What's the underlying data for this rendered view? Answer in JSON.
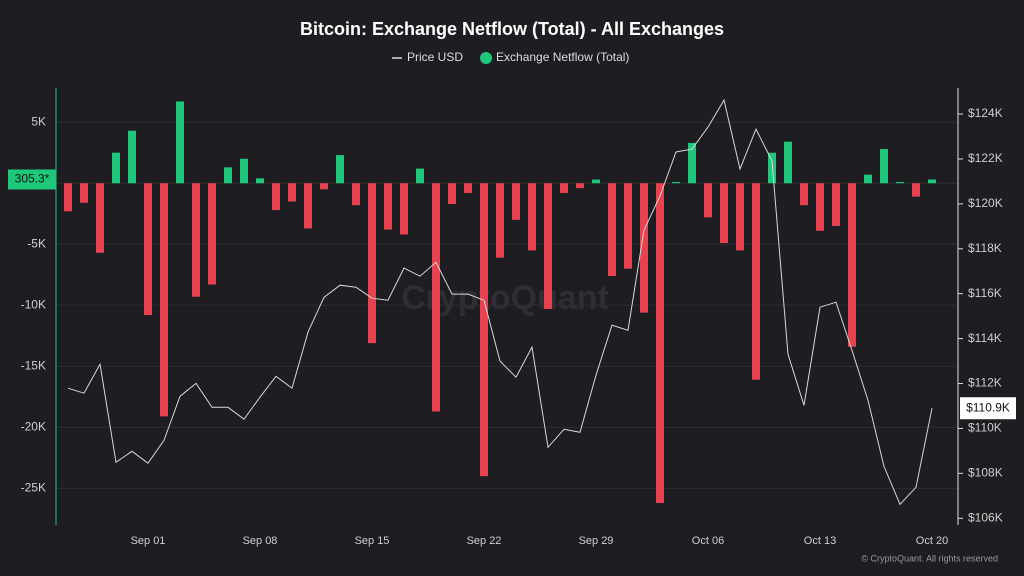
{
  "chart_data": {
    "type": "bar",
    "title": "Bitcoin: Exchange Netflow (Total) - All Exchanges",
    "watermark": "CryptoQuant",
    "footer": "© CryptoQuant. All rights reserved",
    "categories": [
      null,
      null,
      null,
      null,
      null,
      "Sep 01",
      null,
      null,
      null,
      null,
      null,
      null,
      "Sep 08",
      null,
      null,
      null,
      null,
      null,
      null,
      "Sep 15",
      null,
      null,
      null,
      null,
      null,
      null,
      "Sep 22",
      null,
      null,
      null,
      null,
      null,
      null,
      "Sep 29",
      null,
      null,
      null,
      null,
      null,
      null,
      "Oct 06",
      null,
      null,
      null,
      null,
      null,
      null,
      "Oct 13",
      null,
      null,
      null,
      null,
      null,
      null,
      "Oct 20"
    ],
    "series": [
      {
        "name": "Price USD",
        "type": "line",
        "axis": "y2",
        "color": "#d8d8d8",
        "values": [
          111790,
          111570,
          112860,
          108490,
          108980,
          108450,
          109470,
          111430,
          112010,
          110940,
          110940,
          110410,
          111390,
          112320,
          111790,
          114290,
          115840,
          116380,
          116290,
          115800,
          115710,
          117140,
          116780,
          117400,
          115980,
          115980,
          115710,
          113000,
          112280,
          113620,
          109160,
          109960,
          109830,
          112370,
          114600,
          114370,
          118830,
          120350,
          122310,
          122440,
          123420,
          124620,
          121550,
          123330,
          121910,
          113300,
          111030,
          115400,
          115620,
          113480,
          111250,
          108310,
          106620,
          107380,
          110900
        ],
        "last_label": "$110.9K"
      },
      {
        "name": "Exchange Netflow (Total)",
        "type": "bar",
        "color": "#1fc77a",
        "negative_color": "#e8414f",
        "values": [
          -2300,
          -1600,
          -5700,
          2500,
          4300,
          -10800,
          -19100,
          6700,
          -9300,
          -8300,
          1300,
          2000,
          400,
          -2200,
          -1500,
          -3700,
          -500,
          2300,
          -1800,
          -13100,
          -3800,
          -4200,
          1200,
          -18700,
          -1700,
          -800,
          -24000,
          -6100,
          -3000,
          -5500,
          -10300,
          -800,
          -400,
          300,
          -7600,
          -7000,
          -10600,
          -26200,
          100,
          3300,
          -2800,
          -4900,
          -5500,
          -16100,
          2500,
          3400,
          -1800,
          -3900,
          -3500,
          -13400,
          700,
          2800,
          100,
          -1100,
          305.3
        ],
        "last_label": "305.3*"
      }
    ],
    "ylim": [
      -28000,
      7800
    ],
    "yticks": [
      {
        "value": 5000,
        "label": "5K"
      },
      0,
      {
        "value": -5000,
        "label": "-5K"
      },
      {
        "value": -10000,
        "label": "-10K"
      },
      {
        "value": -15000,
        "label": "-15K"
      },
      {
        "value": -20000,
        "label": "-20K"
      },
      {
        "value": -25000,
        "label": "-25K"
      }
    ],
    "y2lim": [
      105700,
      125160
    ],
    "y2ticks": [
      {
        "value": 106000,
        "label": "$106K"
      },
      {
        "value": 108000,
        "label": "$108K"
      },
      {
        "value": 110000,
        "label": "$110K"
      },
      {
        "value": 112000,
        "label": "$112K"
      },
      {
        "value": 114000,
        "label": "$114K"
      },
      {
        "value": 116000,
        "label": "$116K"
      },
      {
        "value": 118000,
        "label": "$118K"
      },
      {
        "value": 120000,
        "label": "$120K"
      },
      {
        "value": 122000,
        "label": "$122K"
      },
      {
        "value": 124000,
        "label": "$124K"
      }
    ],
    "grid": true
  }
}
